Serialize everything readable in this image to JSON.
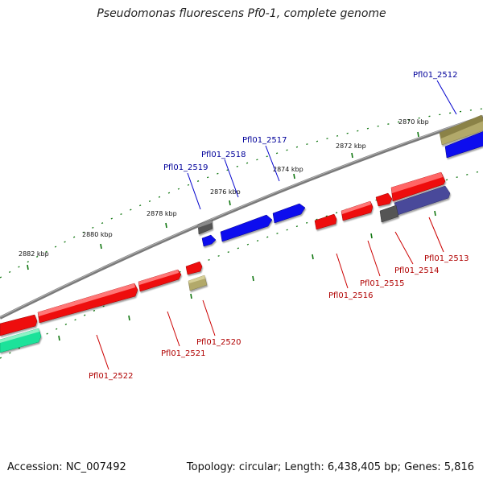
{
  "title": "Pseudomonas fluorescens Pf0-1, complete genome",
  "footer": {
    "accession": "Accession: NC_007492",
    "summary": "Topology: circular; Length: 6,438,405 bp; Genes: 5,816"
  },
  "colors": {
    "forward_label": "#00009a",
    "reverse_label": "#b00000",
    "red_gene": "#ee1111",
    "blue_gene": "#1111ee",
    "gray_gene": "#555555",
    "olive_gene": "#b2a96a",
    "green_gene": "#1fe29a",
    "tick_mark": "#117711",
    "backbone": "#808080"
  },
  "axis_labels": [
    {
      "text": "2870 kbp"
    },
    {
      "text": "2872 kbp"
    },
    {
      "text": "2874 kbp"
    },
    {
      "text": "2876 kbp"
    },
    {
      "text": "2878 kbp"
    },
    {
      "text": "2880 kbp"
    },
    {
      "text": "2882 kbp"
    }
  ],
  "forward_genes": [
    {
      "label": "Pfl01_2512"
    },
    {
      "label": "Pfl01_2517"
    },
    {
      "label": "Pfl01_2518"
    },
    {
      "label": "Pfl01_2519"
    }
  ],
  "reverse_genes": [
    {
      "label": "Pfl01_2513"
    },
    {
      "label": "Pfl01_2514"
    },
    {
      "label": "Pfl01_2515"
    },
    {
      "label": "Pfl01_2516"
    },
    {
      "label": "Pfl01_2520"
    },
    {
      "label": "Pfl01_2521"
    },
    {
      "label": "Pfl01_2522"
    }
  ]
}
